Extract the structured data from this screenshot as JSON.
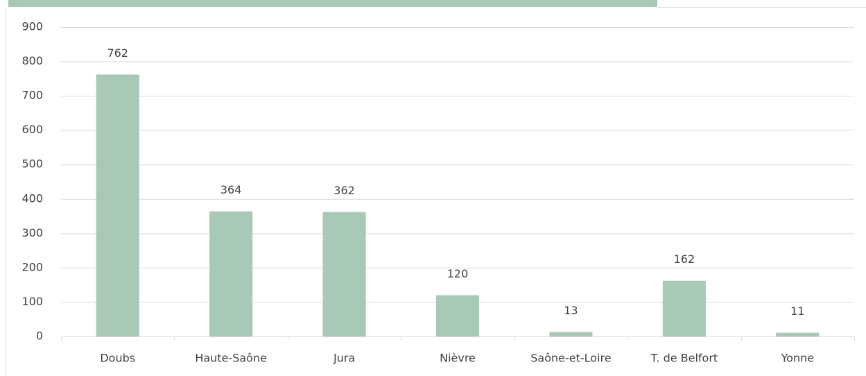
{
  "chart_data": {
    "type": "bar",
    "categories": [
      "Doubs",
      "Haute-Saône",
      "Jura",
      "Nièvre",
      "Saône-et-Loire",
      "T. de Belfort",
      "Yonne"
    ],
    "values": [
      762,
      364,
      362,
      120,
      13,
      162,
      11
    ],
    "color": "#a9c9b7",
    "ylim": [
      0,
      900
    ],
    "yticks": [
      0,
      100,
      200,
      300,
      400,
      500,
      600,
      700,
      800,
      900
    ],
    "grid": true
  }
}
